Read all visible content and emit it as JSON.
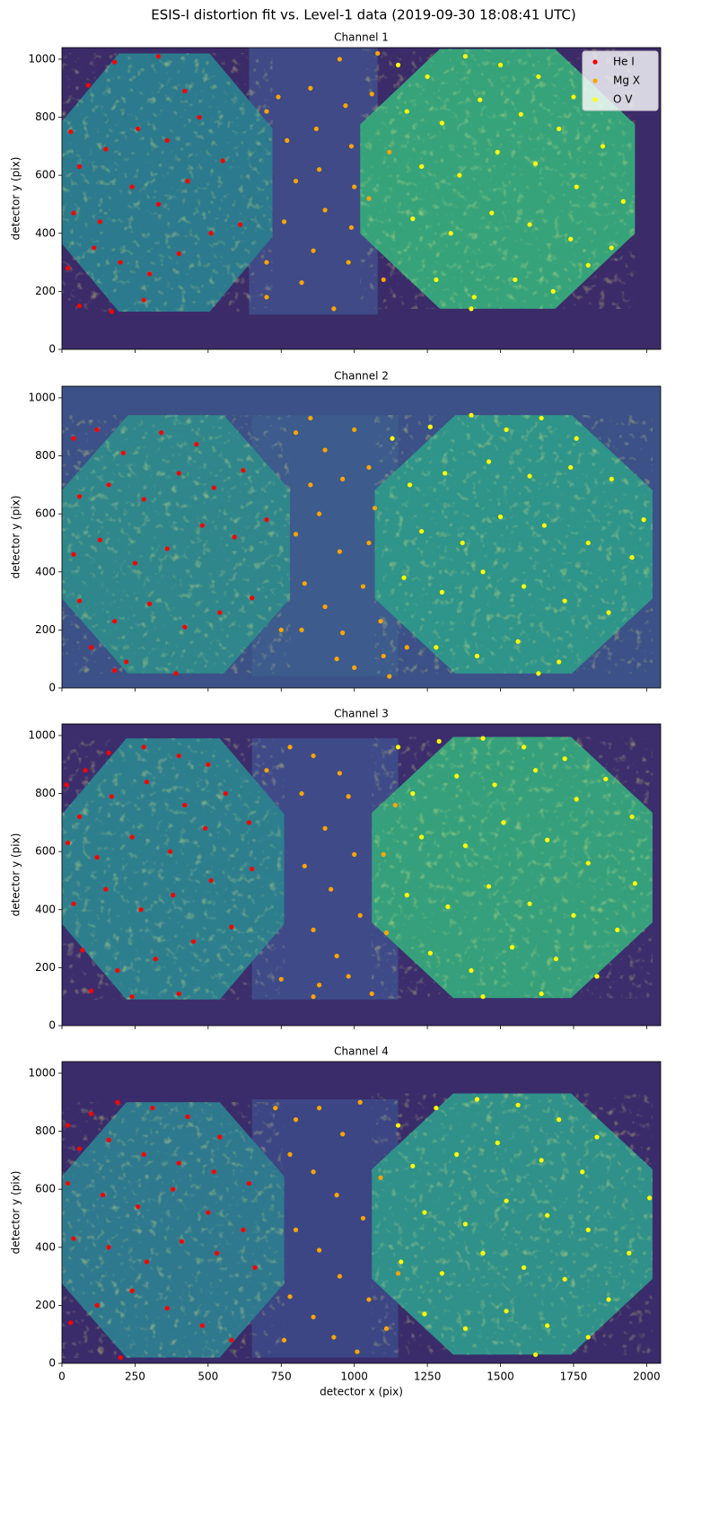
{
  "title": "ESIS-I distortion fit vs. Level-1 data (2019-09-30 18:08:41 UTC)",
  "chart_data": [
    {
      "type": "scatter",
      "title": "Channel 1",
      "y_label": "detector y (pix)",
      "xlim": [
        0,
        2048
      ],
      "ylim": [
        0,
        1040
      ],
      "xticks": [
        0,
        250,
        500,
        750,
        1000,
        1250,
        1500,
        1750,
        2000
      ],
      "yticks": [
        0,
        200,
        400,
        600,
        800,
        1000
      ],
      "xtick_labels": false,
      "legend": "upper right",
      "series": [
        {
          "name": "He I",
          "color": "#ff0000",
          "x": [
            30,
            90,
            180,
            330,
            420,
            60,
            150,
            260,
            360,
            470,
            40,
            130,
            240,
            330,
            430,
            550,
            20,
            110,
            200,
            300,
            400,
            510,
            610,
            170,
            280,
            60
          ],
          "y": [
            750,
            910,
            990,
            1010,
            890,
            630,
            690,
            760,
            720,
            800,
            470,
            440,
            560,
            500,
            580,
            650,
            280,
            350,
            300,
            260,
            330,
            400,
            430,
            130,
            170,
            150
          ]
        },
        {
          "name": "Mg X",
          "color": "#ffa500",
          "x": [
            700,
            740,
            770,
            800,
            760,
            700,
            850,
            870,
            880,
            900,
            860,
            820,
            950,
            970,
            990,
            1000,
            990,
            980,
            1080,
            1060,
            1100,
            1120,
            1050,
            930,
            700
          ],
          "y": [
            820,
            870,
            720,
            580,
            440,
            300,
            900,
            760,
            620,
            480,
            340,
            230,
            1000,
            840,
            700,
            560,
            420,
            300,
            1020,
            880,
            240,
            680,
            520,
            140,
            180
          ]
        },
        {
          "name": "O V",
          "color": "#ffff00",
          "x": [
            1150,
            1250,
            1380,
            1500,
            1630,
            1750,
            1180,
            1300,
            1430,
            1570,
            1700,
            1850,
            1230,
            1360,
            1490,
            1620,
            1760,
            1920,
            1200,
            1330,
            1470,
            1600,
            1740,
            1880,
            1280,
            1410,
            1550,
            1680,
            1400,
            1800
          ],
          "y": [
            980,
            940,
            1010,
            980,
            940,
            870,
            820,
            780,
            860,
            810,
            760,
            700,
            630,
            600,
            680,
            640,
            560,
            510,
            450,
            400,
            470,
            430,
            380,
            350,
            240,
            180,
            240,
            200,
            140,
            290
          ]
        }
      ]
    },
    {
      "type": "scatter",
      "title": "Channel 2",
      "y_label": "detector y (pix)",
      "xlim": [
        0,
        2048
      ],
      "ylim": [
        0,
        1040
      ],
      "xticks": [
        0,
        250,
        500,
        750,
        1000,
        1250,
        1500,
        1750,
        2000
      ],
      "yticks": [
        0,
        200,
        400,
        600,
        800,
        1000
      ],
      "xtick_labels": false,
      "series": [
        {
          "name": "He I",
          "color": "#ff0000",
          "x": [
            40,
            120,
            210,
            340,
            460,
            60,
            160,
            280,
            400,
            520,
            620,
            40,
            130,
            250,
            360,
            480,
            590,
            700,
            60,
            180,
            300,
            420,
            540,
            650,
            100,
            220,
            390,
            180
          ],
          "y": [
            860,
            890,
            810,
            880,
            840,
            660,
            700,
            650,
            740,
            690,
            750,
            460,
            510,
            430,
            480,
            560,
            520,
            580,
            300,
            230,
            290,
            210,
            260,
            310,
            140,
            90,
            50,
            60
          ]
        },
        {
          "name": "Mg X",
          "color": "#ffa500",
          "x": [
            800,
            850,
            900,
            960,
            850,
            800,
            880,
            950,
            830,
            900,
            960,
            1000,
            1050,
            1070,
            1050,
            1030,
            1090,
            1100,
            1000,
            820,
            750,
            940,
            1180,
            1120
          ],
          "y": [
            880,
            930,
            820,
            720,
            700,
            530,
            600,
            470,
            360,
            280,
            190,
            890,
            760,
            620,
            500,
            350,
            230,
            110,
            70,
            200,
            200,
            100,
            140,
            40
          ]
        },
        {
          "name": "O V",
          "color": "#ffff00",
          "x": [
            1130,
            1260,
            1400,
            1520,
            1640,
            1760,
            1190,
            1310,
            1460,
            1600,
            1740,
            1880,
            1990,
            1230,
            1370,
            1500,
            1650,
            1800,
            1950,
            1170,
            1300,
            1440,
            1580,
            1720,
            1870,
            1280,
            1420,
            1560,
            1700,
            1630
          ],
          "y": [
            860,
            900,
            940,
            890,
            930,
            860,
            700,
            740,
            780,
            730,
            760,
            720,
            580,
            540,
            500,
            590,
            560,
            500,
            450,
            380,
            330,
            400,
            350,
            300,
            260,
            140,
            110,
            160,
            90,
            50
          ]
        }
      ]
    },
    {
      "type": "scatter",
      "title": "Channel 3",
      "y_label": "detector y (pix)",
      "xlim": [
        0,
        2048
      ],
      "ylim": [
        0,
        1040
      ],
      "xticks": [
        0,
        250,
        500,
        750,
        1000,
        1250,
        1500,
        1750,
        2000
      ],
      "yticks": [
        0,
        200,
        400,
        600,
        800,
        1000
      ],
      "xtick_labels": false,
      "series": [
        {
          "name": "He I",
          "color": "#ff0000",
          "x": [
            15,
            80,
            160,
            280,
            400,
            500,
            60,
            170,
            290,
            420,
            560,
            20,
            120,
            240,
            370,
            490,
            640,
            40,
            150,
            270,
            380,
            510,
            650,
            70,
            190,
            320,
            450,
            580,
            100,
            240,
            400
          ],
          "y": [
            830,
            880,
            940,
            960,
            930,
            900,
            720,
            790,
            840,
            760,
            800,
            630,
            580,
            650,
            600,
            680,
            700,
            420,
            470,
            400,
            450,
            500,
            540,
            260,
            190,
            230,
            290,
            340,
            120,
            100,
            110
          ]
        },
        {
          "name": "Mg X",
          "color": "#ffa500",
          "x": [
            700,
            780,
            860,
            950,
            820,
            900,
            980,
            830,
            920,
            1000,
            860,
            940,
            1020,
            880,
            980,
            1060,
            1110,
            1140,
            1100,
            860,
            750
          ],
          "y": [
            880,
            960,
            930,
            870,
            800,
            680,
            790,
            550,
            470,
            590,
            330,
            240,
            380,
            140,
            170,
            110,
            320,
            760,
            590,
            100,
            160
          ]
        },
        {
          "name": "O V",
          "color": "#ffff00",
          "x": [
            1150,
            1290,
            1440,
            1580,
            1720,
            1860,
            1200,
            1350,
            1480,
            1620,
            1760,
            1950,
            1230,
            1380,
            1510,
            1660,
            1800,
            1960,
            1180,
            1320,
            1460,
            1600,
            1750,
            1900,
            1260,
            1400,
            1540,
            1690,
            1830,
            1440,
            1640
          ],
          "y": [
            960,
            980,
            990,
            960,
            920,
            850,
            800,
            860,
            830,
            880,
            780,
            720,
            650,
            620,
            700,
            640,
            560,
            490,
            450,
            410,
            480,
            420,
            380,
            330,
            250,
            190,
            270,
            230,
            170,
            100,
            110
          ]
        }
      ]
    },
    {
      "type": "scatter",
      "title": "Channel 4",
      "y_label": "detector y (pix)",
      "x_label": "detector x (pix)",
      "xlim": [
        0,
        2048
      ],
      "ylim": [
        0,
        1040
      ],
      "xticks": [
        0,
        250,
        500,
        750,
        1000,
        1250,
        1500,
        1750,
        2000
      ],
      "yticks": [
        0,
        200,
        400,
        600,
        800,
        1000
      ],
      "xtick_labels": true,
      "series": [
        {
          "name": "He I",
          "color": "#ff0000",
          "x": [
            20,
            100,
            190,
            310,
            430,
            540,
            60,
            160,
            280,
            400,
            520,
            640,
            20,
            140,
            260,
            380,
            500,
            620,
            40,
            160,
            290,
            410,
            530,
            660,
            30,
            120,
            240,
            360,
            480,
            580,
            200
          ],
          "y": [
            820,
            860,
            900,
            880,
            850,
            780,
            740,
            770,
            720,
            690,
            660,
            620,
            620,
            580,
            540,
            600,
            520,
            460,
            430,
            400,
            350,
            420,
            380,
            330,
            140,
            200,
            250,
            190,
            130,
            80,
            20
          ]
        },
        {
          "name": "Mg X",
          "color": "#ffa500",
          "x": [
            730,
            800,
            880,
            960,
            1020,
            780,
            860,
            940,
            1030,
            800,
            880,
            950,
            1050,
            780,
            860,
            930,
            1010,
            1110,
            1090,
            1150,
            760
          ],
          "y": [
            880,
            840,
            880,
            790,
            900,
            720,
            660,
            580,
            500,
            460,
            390,
            300,
            220,
            230,
            160,
            90,
            40,
            120,
            640,
            310,
            80
          ]
        },
        {
          "name": "O V",
          "color": "#ffff00",
          "x": [
            1150,
            1280,
            1420,
            1560,
            1700,
            1830,
            1200,
            1350,
            1490,
            1640,
            1780,
            2010,
            1240,
            1380,
            1520,
            1660,
            1800,
            1940,
            1160,
            1300,
            1440,
            1580,
            1720,
            1870,
            1240,
            1380,
            1520,
            1660,
            1800,
            1620
          ],
          "y": [
            820,
            880,
            910,
            890,
            840,
            780,
            680,
            720,
            760,
            700,
            660,
            570,
            520,
            480,
            560,
            510,
            460,
            380,
            350,
            310,
            380,
            330,
            290,
            220,
            170,
            120,
            180,
            130,
            90,
            30
          ]
        }
      ]
    }
  ]
}
